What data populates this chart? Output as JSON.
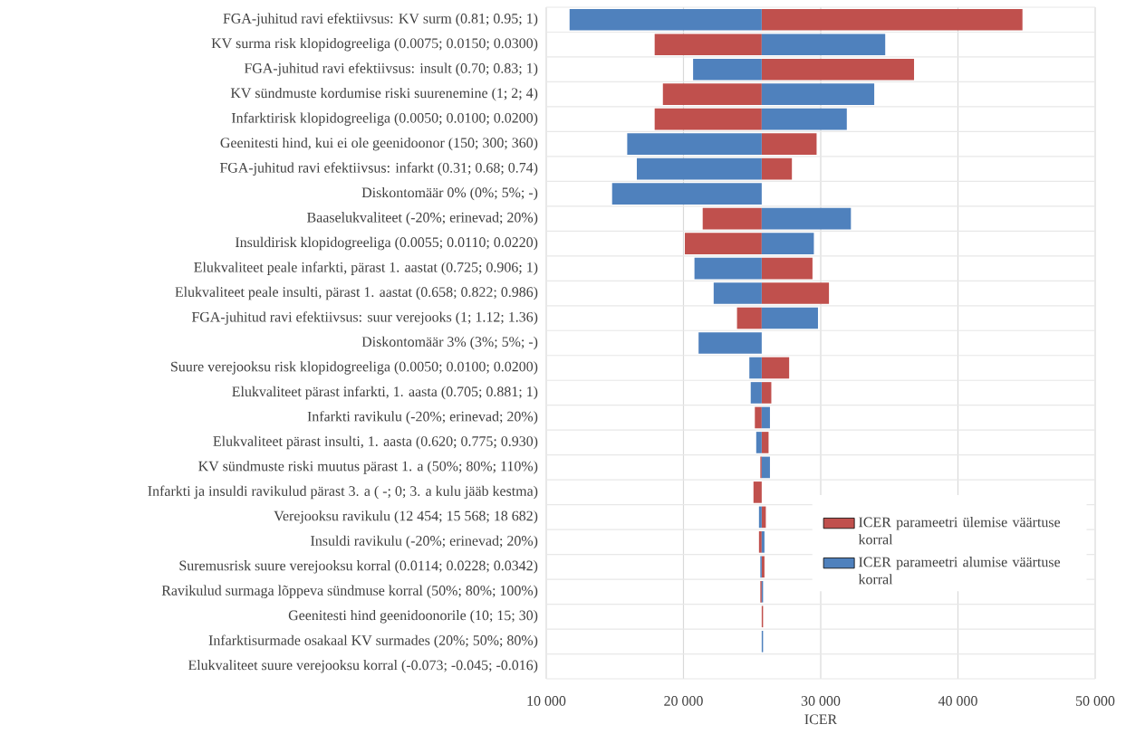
{
  "chart_data": {
    "type": "bar",
    "orientation": "horizontal",
    "xlabel": "ICER",
    "categories": [
      "FGA-juhitud ravi efektiivsus: KV surm (0.81; 0.95; 1)",
      "KV surma risk klopidogreeliga (0.0075; 0.0150; 0.0300)",
      "FGA-juhitud ravi efektiivsus: insult (0.70; 0.83; 1)",
      "KV sündmuste kordumise riski suurenemine (1; 2; 4)",
      "Infarktirisk klopidogreeliga (0.0050; 0.0100; 0.0200)",
      "Geenitesti hind, kui ei ole geenidoonor (150; 300; 360)",
      "FGA-juhitud ravi efektiivsus: infarkt (0.31; 0.68; 0.74)",
      "Diskontomäär 0% (0%; 5%; -)",
      "Baaselukvaliteet (-20%; erinevad; 20%)",
      "Insuldirisk klopidogreeliga (0.0055; 0.0110; 0.0220)",
      "Elukvaliteet peale infarkti, pärast 1. aastat (0.725; 0.906; 1)",
      "Elukvaliteet peale insulti, pärast 1. aastat (0.658; 0.822; 0.986)",
      "FGA-juhitud ravi efektiivsus: suur verejooks (1; 1.12; 1.36)",
      "Diskontomäär 3% (3%; 5%; -)",
      "Suure verejooksu risk klopidogreeliga (0.0050; 0.0100; 0.0200)",
      "Elukvaliteet pärast infarkti, 1. aasta (0.705; 0.881; 1)",
      "Infarkti ravikulu (-20%; erinevad; 20%)",
      "Elukvaliteet pärast insulti, 1. aasta (0.620; 0.775; 0.930)",
      "KV sündmuste riski muutus pärast 1. a (50%; 80%; 110%)",
      "Infarkti ja insuldi ravikulud pärast 3. a ( -; 0; 3. a kulu jääb kestma)",
      "Verejooksu ravikulu (12 454; 15 568; 18 682)",
      "Insuldi ravikulu (-20%; erinevad; 20%)",
      "Suremusrisk suure verejooksu korral (0.0114; 0.0228; 0.0342)",
      "Ravikulud surmaga lõppeva sündmuse korral (50%; 80%; 100%)",
      "Geenitesti hind geenidoonorile (10; 15; 30)",
      "Infarktisurmade osakaal KV surmades (20%; 50%; 80%)",
      "Elukvaliteet suure verejooksu korral (-0.073; -0.045; -0.016)"
    ],
    "series": [
      {
        "name": "ICER parameetri ülemise väärtuse korral",
        "color": "#c0504d",
        "base": [
          25700,
          25700,
          25700,
          25700,
          25700,
          25700,
          25700,
          null,
          25700,
          25700,
          25700,
          25700,
          25700,
          null,
          25700,
          25700,
          25700,
          25700,
          25700,
          25700,
          25700,
          25700,
          25700,
          25700,
          25700,
          null,
          null
        ],
        "values": [
          19000,
          -7800,
          11100,
          -7200,
          -7800,
          4000,
          2200,
          null,
          -4300,
          -5600,
          3700,
          4900,
          -1800,
          null,
          2000,
          700,
          -500,
          500,
          -100,
          -600,
          300,
          -200,
          200,
          -100,
          100,
          null,
          null
        ]
      },
      {
        "name": "ICER parameetri alumise väärtuse korral",
        "color": "#4f81bd",
        "base": [
          25700,
          25700,
          25700,
          25700,
          25700,
          25700,
          25700,
          25700,
          25700,
          25700,
          25700,
          25700,
          25700,
          25700,
          25700,
          25700,
          25700,
          25700,
          25700,
          null,
          25700,
          25700,
          25700,
          25700,
          null,
          25700,
          null
        ],
        "values": [
          -14000,
          9000,
          -5000,
          8200,
          6200,
          -9800,
          -9100,
          -10900,
          6500,
          3800,
          -4900,
          -3500,
          4100,
          -4600,
          -900,
          -800,
          600,
          -400,
          600,
          null,
          -200,
          200,
          -100,
          100,
          null,
          100,
          null
        ]
      }
    ],
    "xlim": [
      10000,
      50000
    ],
    "xticks": [
      {
        "value": 10000,
        "label": "10 000"
      },
      {
        "value": 20000,
        "label": "20 000"
      },
      {
        "value": 30000,
        "label": "30 000"
      },
      {
        "value": 40000,
        "label": "40 000"
      },
      {
        "value": 50000,
        "label": "50 000"
      }
    ],
    "grid": true,
    "legend": "bottom right"
  }
}
